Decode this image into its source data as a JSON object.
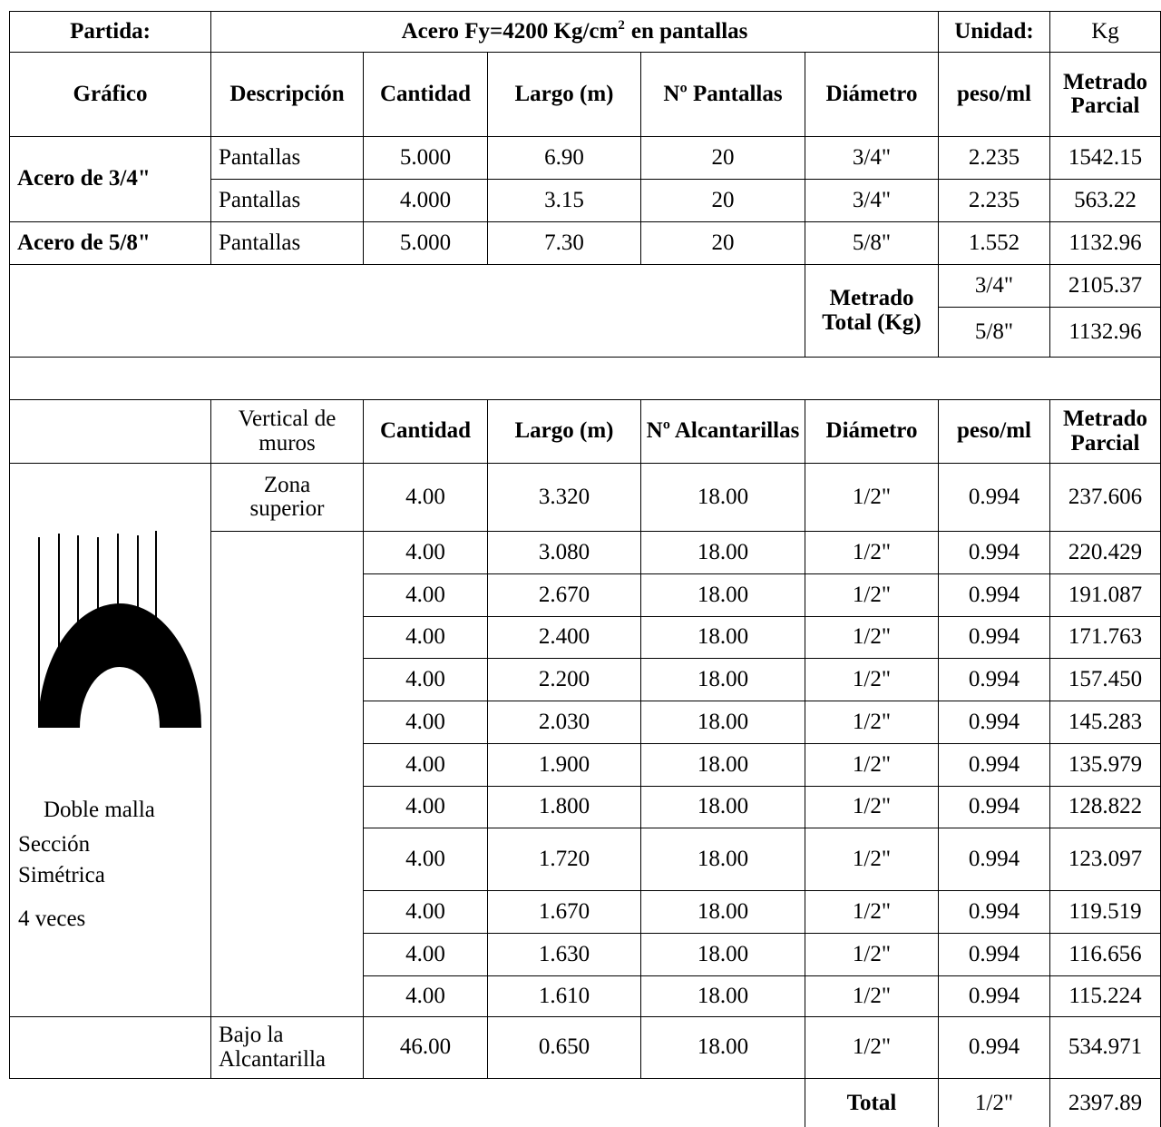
{
  "header": {
    "partida_label": "Partida:",
    "partida": "Acero Fy=4200 Kg/cm",
    "partida_exp": "2",
    "partida_suffix": "en pantallas",
    "unidad_label": "Unidad:",
    "unidad": "Kg"
  },
  "table1": {
    "columns": [
      "Gráfico",
      "Descripción",
      "Cantidad",
      "Largo (m)",
      "Nº Pantallas",
      "Diámetro",
      "peso/ml",
      "Metrado Parcial"
    ],
    "groups": [
      {
        "label": "Acero de 3/4\"",
        "rows": [
          [
            "Pantallas",
            "5.000",
            "6.90",
            "20",
            "3/4\"",
            "2.235",
            "1542.15"
          ],
          [
            "Pantallas",
            "4.000",
            "3.15",
            "20",
            "3/4\"",
            "2.235",
            "563.22"
          ]
        ]
      },
      {
        "label": "Acero de 5/8\"",
        "rows": [
          [
            "Pantallas",
            "5.000",
            "7.30",
            "20",
            "5/8\"",
            "1.552",
            "1132.96"
          ]
        ]
      }
    ],
    "total_label": "Metrado Total (Kg)",
    "totals": [
      [
        "3/4\"",
        "2105.37"
      ],
      [
        "5/8\"",
        "1132.96"
      ]
    ]
  },
  "table2": {
    "columns": [
      "Vertical de muros",
      "Cantidad",
      "Largo (m)",
      "Nº Alcantarillas",
      "Diámetro",
      "peso/ml",
      "Metrado Parcial"
    ],
    "zona_label": "Zona superior",
    "zona_row": [
      "4.00",
      "3.320",
      "18.00",
      "1/2\"",
      "0.994",
      "237.606"
    ],
    "rows": [
      [
        "4.00",
        "3.080",
        "18.00",
        "1/2\"",
        "0.994",
        "220.429"
      ],
      [
        "4.00",
        "2.670",
        "18.00",
        "1/2\"",
        "0.994",
        "191.087"
      ],
      [
        "4.00",
        "2.400",
        "18.00",
        "1/2\"",
        "0.994",
        "171.763"
      ],
      [
        "4.00",
        "2.200",
        "18.00",
        "1/2\"",
        "0.994",
        "157.450"
      ],
      [
        "4.00",
        "2.030",
        "18.00",
        "1/2\"",
        "0.994",
        "145.283"
      ],
      [
        "4.00",
        "1.900",
        "18.00",
        "1/2\"",
        "0.994",
        "135.979"
      ],
      [
        "4.00",
        "1.800",
        "18.00",
        "1/2\"",
        "0.994",
        "128.822"
      ],
      [
        "4.00",
        "1.720",
        "18.00",
        "1/2\"",
        "0.994",
        "123.097"
      ],
      [
        "4.00",
        "1.670",
        "18.00",
        "1/2\"",
        "0.994",
        "119.519"
      ],
      [
        "4.00",
        "1.630",
        "18.00",
        "1/2\"",
        "0.994",
        "116.656"
      ],
      [
        "4.00",
        "1.610",
        "18.00",
        "1/2\"",
        "0.994",
        "115.224"
      ]
    ],
    "bajo_label": "Bajo la Alcantarilla",
    "bajo_row": [
      "46.00",
      "0.650",
      "18.00",
      "1/2\"",
      "0.994",
      "534.971"
    ],
    "graphic_caption": [
      "Doble malla",
      "Sección Simétrica",
      "4 veces"
    ],
    "total_label": "Total",
    "total_diameter": "1/2\"",
    "total": "2397.89"
  }
}
